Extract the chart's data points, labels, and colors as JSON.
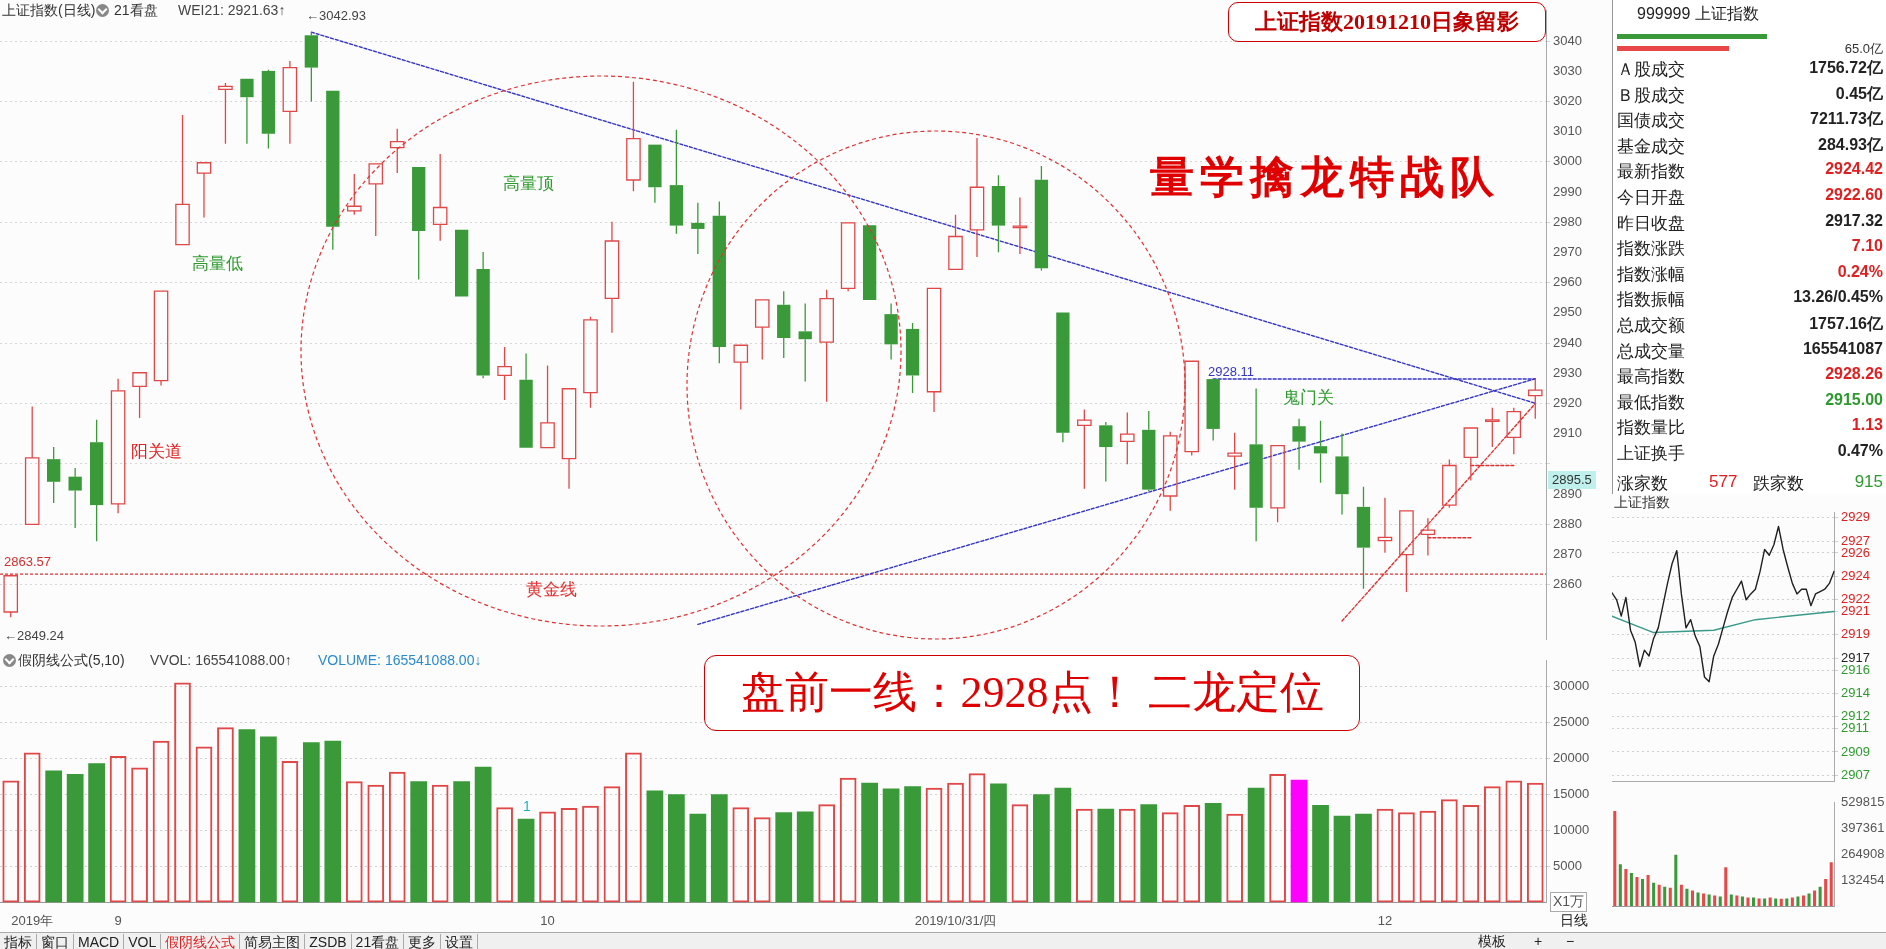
{
  "chart_data": [
    {
      "type": "candlestick",
      "title": "上证指数(日线)",
      "categories": [
        null,
        null,
        null,
        null,
        null,
        null,
        null,
        null,
        null,
        null,
        null,
        null,
        null,
        null,
        null,
        null,
        null,
        null,
        null,
        null,
        null,
        null,
        null,
        null,
        null,
        null,
        null,
        null,
        null,
        null,
        null,
        null,
        null,
        null,
        null,
        null,
        null,
        null,
        null,
        null,
        null,
        null,
        null,
        null,
        null,
        null,
        null,
        null,
        null,
        null,
        null,
        null,
        null,
        null,
        null,
        null,
        null,
        null,
        null,
        null,
        null,
        null,
        null,
        null,
        null,
        null,
        null,
        null,
        null,
        null,
        null,
        null
      ],
      "ohlc": [
        [
          2851,
          2863.57,
          2849.24,
          2863
        ],
        [
          2880,
          2919,
          2880,
          2902
        ],
        [
          2901.6,
          2905.6,
          2887.1,
          2894.1
        ],
        [
          2895.8,
          2898.7,
          2878.8,
          2891.2
        ],
        [
          2907.2,
          2914.6,
          2874.4,
          2886.4
        ],
        [
          2886.8,
          2928.2,
          2883.7,
          2924.2
        ],
        [
          2925.7,
          2930.2,
          2915.2,
          2930.2
        ],
        [
          2927.6,
          2957.2,
          2926,
          2957.2
        ],
        [
          2972.6,
          3015.5,
          2972.6,
          2985.9
        ],
        [
          2996.3,
          2999.7,
          2981.6,
          2999.7
        ],
        [
          3024,
          3026.1,
          3006,
          3025
        ],
        [
          3027.5,
          3027.5,
          3006,
          3021.4
        ],
        [
          3030.1,
          3030.5,
          3004.4,
          3009.3
        ],
        [
          3016.7,
          3033.4,
          3006,
          3031.2
        ],
        [
          3041.9,
          3042.93,
          3020,
          3031.2
        ],
        [
          3023.5,
          3023.5,
          2970.9,
          2978.5
        ],
        [
          2983.8,
          2996,
          2982.5,
          2985.3
        ],
        [
          2992.7,
          2999.3,
          2975.5,
          2999.3
        ],
        [
          3004.7,
          3011,
          2996.3,
          3006.7
        ],
        [
          2998.3,
          2998.3,
          2961.1,
          2977.1
        ],
        [
          2979.3,
          3002.6,
          2973.9,
          2984.9
        ],
        [
          2977.5,
          2977.5,
          2955.4,
          2955.4
        ],
        [
          2964.5,
          2970.2,
          2928.4,
          2929.3
        ],
        [
          2929.3,
          2938.7,
          2921.2,
          2932.2
        ],
        [
          2927.9,
          2936.6,
          2905.4,
          2905.4
        ],
        [
          2905.4,
          2932.6,
          2905.4,
          2913.6
        ],
        [
          2901.8,
          2924.9,
          2891.8,
          2924.9
        ],
        [
          2923.6,
          2948.7,
          2918.6,
          2947.7
        ],
        [
          2954.8,
          2980.2,
          2943.4,
          2973.8
        ],
        [
          2994,
          3026.5,
          2990.3,
          3007.7
        ],
        [
          3005.7,
          3005.7,
          2986.5,
          2991.6
        ],
        [
          2992.3,
          3010.6,
          2976.2,
          2978.9
        ],
        [
          2979.8,
          2986.5,
          2969.5,
          2977.8
        ],
        [
          2982.2,
          2986.9,
          2933.3,
          2938.7
        ],
        [
          2933.7,
          2939.3,
          2918,
          2939.3
        ],
        [
          2945.3,
          2954.3,
          2934.6,
          2954.3
        ],
        [
          2952.7,
          2957.2,
          2935.1,
          2941.7
        ],
        [
          2943.9,
          2953.1,
          2927.3,
          2941.3
        ],
        [
          2940.3,
          2957.7,
          2920.6,
          2954.7
        ],
        [
          2958.1,
          2979.8,
          2957.2,
          2979.8
        ],
        [
          2979,
          2979,
          2954.3,
          2954.3
        ],
        [
          2949.6,
          2953.1,
          2934.6,
          2939.6
        ],
        [
          2944.7,
          2946.7,
          2923.5,
          2929.3
        ],
        [
          2923.9,
          2958.1,
          2917.2,
          2958.1
        ],
        [
          2964.4,
          2982.5,
          2964.4,
          2975.3
        ],
        [
          2977.5,
          3007.9,
          2968.5,
          2991.6
        ],
        [
          2992,
          2995.6,
          2970.1,
          2978.9
        ],
        [
          2978.3,
          2988.2,
          2969.5,
          2978.7
        ],
        [
          2994.1,
          2998.6,
          2964,
          2964.8
        ],
        [
          2950.1,
          2950.1,
          2907.2,
          2910.3
        ],
        [
          2912.8,
          2918,
          2891.8,
          2914.5
        ],
        [
          2912.8,
          2913.9,
          2894.2,
          2905.6
        ],
        [
          2907.5,
          2917,
          2899.9,
          2909.9
        ],
        [
          2911.3,
          2917.5,
          2891,
          2891.5
        ],
        [
          2889.4,
          2910.7,
          2884.5,
          2909.3
        ],
        [
          2904.1,
          2934,
          2902.8,
          2934
        ],
        [
          2928.1,
          2928.11,
          2907.8,
          2911.6
        ],
        [
          2902.6,
          2910.3,
          2891.5,
          2903.6
        ],
        [
          2906.5,
          2925,
          2874.4,
          2885.5
        ],
        [
          2885.5,
          2906.1,
          2880.7,
          2906.1
        ],
        [
          2912.5,
          2915,
          2898.1,
          2907.4
        ],
        [
          2905.9,
          2914.3,
          2893.8,
          2903.5
        ],
        [
          2902.5,
          2910.1,
          2883.3,
          2890
        ],
        [
          2885.8,
          2892.5,
          2858.7,
          2872.3
        ],
        [
          2874.6,
          2888.8,
          2870.6,
          2875.7
        ],
        [
          2870,
          2884.5,
          2857.6,
          2884.5
        ],
        [
          2876.7,
          2882,
          2869.7,
          2878.1
        ],
        [
          2886.4,
          2901.5,
          2885.5,
          2899.5
        ],
        [
          2902.2,
          2911.9,
          2894.5,
          2911.9
        ],
        [
          2914.2,
          2918.6,
          2905.6,
          2914.6
        ],
        [
          2908.8,
          2918.6,
          2903.2,
          2917.32
        ],
        [
          2922.6,
          2928.26,
          2915,
          2924.42
        ]
      ],
      "colors": [
        "#e04848",
        "#e04848",
        "#3a9a3a",
        "#3a9a3a",
        "#3a9a3a",
        "#e04848",
        "#e04848",
        "#e04848",
        "#e04848",
        "#e04848",
        "#e04848",
        "#3a9a3a",
        "#3a9a3a",
        "#e04848",
        "#3a9a3a",
        "#3a9a3a",
        "#e04848",
        "#e04848",
        "#e04848",
        "#3a9a3a",
        "#e04848",
        "#3a9a3a",
        "#3a9a3a",
        "#e04848",
        "#3a9a3a",
        "#e04848",
        "#e04848",
        "#e04848",
        "#e04848",
        "#e04848",
        "#3a9a3a",
        "#3a9a3a",
        "#3a9a3a",
        "#3a9a3a",
        "#e04848",
        "#e04848",
        "#3a9a3a",
        "#3a9a3a",
        "#e04848",
        "#e04848",
        "#3a9a3a",
        "#3a9a3a",
        "#3a9a3a",
        "#e04848",
        "#e04848",
        "#e04848",
        "#3a9a3a",
        "#e04848",
        "#3a9a3a",
        "#3a9a3a",
        "#e04848",
        "#3a9a3a",
        "#e04848",
        "#3a9a3a",
        "#e04848",
        "#e04848",
        "#3a9a3a",
        "#e04848",
        "#3a9a3a",
        "#e04848",
        "#3a9a3a",
        "#3a9a3a",
        "#3a9a3a",
        "#3a9a3a",
        "#e04848",
        "#e04848",
        "#e04848",
        "#e04848",
        "#e04848",
        "#e04848",
        "#e04848",
        "#e04848"
      ],
      "series": [
        {
          "type": "line",
          "color": "#3535c8",
          "values": [
            null,
            null,
            null,
            null,
            null,
            null,
            null,
            null,
            null,
            null,
            null,
            null,
            null,
            null,
            3042.93,
            null,
            null,
            null,
            null,
            null,
            null,
            null,
            null,
            null,
            null,
            null,
            null,
            null,
            null,
            null,
            null,
            null,
            null,
            null,
            null,
            null,
            null,
            null,
            null,
            null,
            null,
            null,
            null,
            null,
            null,
            null,
            null,
            null,
            null,
            null,
            null,
            null,
            null,
            null,
            null,
            null,
            null,
            null,
            null,
            null,
            null,
            null,
            null,
            null,
            null,
            null,
            null,
            null,
            null,
            null,
            null,
            2920.1
          ]
        },
        {
          "type": "line",
          "color": "#3535c8",
          "values": [
            null,
            null,
            null,
            null,
            null,
            null,
            null,
            null,
            null,
            null,
            null,
            null,
            null,
            null,
            null,
            null,
            null,
            null,
            null,
            null,
            null,
            null,
            null,
            null,
            null,
            null,
            null,
            null,
            null,
            null,
            null,
            null,
            2846.9,
            null,
            null,
            null,
            null,
            null,
            null,
            null,
            null,
            null,
            null,
            null,
            null,
            null,
            null,
            null,
            null,
            null,
            null,
            null,
            null,
            null,
            null,
            null,
            null,
            null,
            null,
            null,
            null,
            null,
            null,
            null,
            null,
            null,
            null,
            null,
            null,
            null,
            null,
            2928.2
          ]
        },
        {
          "type": "line",
          "color": "#3535c8",
          "values": [
            null,
            null,
            null,
            null,
            null,
            null,
            null,
            null,
            null,
            null,
            null,
            null,
            null,
            null,
            null,
            null,
            null,
            null,
            null,
            null,
            null,
            null,
            null,
            null,
            null,
            null,
            null,
            null,
            null,
            null,
            null,
            null,
            null,
            null,
            null,
            null,
            null,
            null,
            null,
            null,
            null,
            null,
            null,
            null,
            null,
            null,
            null,
            null,
            null,
            null,
            null,
            null,
            null,
            null,
            null,
            null,
            2928.11,
            null,
            null,
            null,
            null,
            null,
            null,
            null,
            null,
            null,
            null,
            null,
            null,
            null,
            null,
            2928.11
          ]
        },
        {
          "type": "line",
          "color": "#e03030",
          "values": [
            null,
            null,
            null,
            null,
            null,
            null,
            null,
            null,
            null,
            null,
            null,
            null,
            null,
            null,
            null,
            null,
            null,
            null,
            null,
            null,
            null,
            null,
            null,
            null,
            null,
            null,
            null,
            null,
            null,
            null,
            null,
            null,
            null,
            null,
            null,
            null,
            null,
            null,
            null,
            null,
            null,
            null,
            null,
            null,
            null,
            null,
            null,
            null,
            null,
            null,
            null,
            null,
            null,
            null,
            null,
            null,
            null,
            null,
            null,
            null,
            null,
            null,
            2848,
            null,
            null,
            null,
            null,
            null,
            null,
            null,
            null,
            2920
          ]
        },
        {
          "type": "line",
          "color": "#e03030",
          "values": [
            null,
            null,
            null,
            null,
            null,
            null,
            null,
            null,
            null,
            null,
            null,
            null,
            null,
            null,
            null,
            null,
            null,
            null,
            null,
            null,
            null,
            null,
            null,
            null,
            null,
            null,
            null,
            null,
            null,
            null,
            null,
            null,
            null,
            null,
            null,
            null,
            null,
            null,
            null,
            null,
            null,
            null,
            null,
            null,
            null,
            null,
            null,
            null,
            null,
            null,
            null,
            null,
            null,
            null,
            null,
            null,
            null,
            null,
            null,
            null,
            null,
            null,
            null,
            null,
            null,
            null,
            2875.6,
            null,
            2875.6,
            null,
            null,
            null
          ]
        },
        {
          "type": "line",
          "color": "#e03030",
          "values": [
            null,
            null,
            null,
            null,
            null,
            null,
            null,
            null,
            null,
            null,
            null,
            null,
            null,
            null,
            null,
            null,
            null,
            null,
            null,
            null,
            null,
            null,
            null,
            null,
            null,
            null,
            null,
            null,
            null,
            null,
            null,
            null,
            null,
            null,
            null,
            null,
            null,
            null,
            null,
            null,
            null,
            null,
            null,
            null,
            null,
            null,
            null,
            null,
            null,
            null,
            null,
            null,
            null,
            null,
            null,
            null,
            null,
            null,
            null,
            null,
            null,
            null,
            null,
            null,
            null,
            null,
            null,
            null,
            2899.5,
            null,
            2899.5,
            null
          ]
        }
      ],
      "line_style": "dashed",
      "ylim": [
        2842,
        3050
      ],
      "yticks": [
        2860,
        2870,
        2880,
        2890,
        {
          "value": 2900,
          "label": null
        },
        2910,
        2920,
        2930,
        2940,
        2950,
        2960,
        2970,
        2980,
        2990,
        3000,
        3010,
        3020,
        3030,
        3040
      ],
      "grid": "y",
      "tick_labels": "y",
      "ref_lines": [
        {
          "axis": "y",
          "value": 2863.57,
          "label": "黄金线",
          "color": "#e03030",
          "line_style": "dashed"
        }
      ],
      "annotations": [
        "21看盘",
        "WEI21: 2921.63↑",
        "上证指数20191210日象留影",
        "量学擒龙特战队",
        "高量低",
        "高量顶",
        "阳关道",
        "鬼门关",
        "←3042.93",
        "←2849.24",
        "2863.57",
        "2928.11",
        "2895.5"
      ]
    },
    {
      "type": "bar",
      "title": "假阴线公式(5,10)",
      "categories": [
        null,
        "2019年",
        null,
        null,
        null,
        "9",
        null,
        null,
        null,
        null,
        null,
        null,
        null,
        null,
        null,
        null,
        null,
        null,
        null,
        null,
        null,
        null,
        null,
        null,
        null,
        "10",
        null,
        null,
        null,
        null,
        null,
        null,
        null,
        null,
        null,
        null,
        null,
        null,
        null,
        null,
        null,
        null,
        null,
        null,
        "2019/10/31/四",
        null,
        null,
        null,
        null,
        null,
        null,
        null,
        null,
        null,
        null,
        null,
        null,
        null,
        null,
        null,
        null,
        null,
        null,
        null,
        "12",
        null,
        null,
        null,
        null,
        null,
        null,
        null
      ],
      "values": [
        16900,
        20800,
        18300,
        17800,
        19300,
        20300,
        18700,
        22400,
        30500,
        21600,
        24300,
        24000,
        23000,
        19600,
        22200,
        22400,
        16800,
        16300,
        18100,
        16800,
        16300,
        16800,
        18800,
        13200,
        11600,
        12600,
        13100,
        13400,
        16100,
        20800,
        15500,
        15000,
        12300,
        15000,
        13200,
        11800,
        12500,
        12600,
        13600,
        17300,
        16600,
        15800,
        16100,
        15900,
        16600,
        17900,
        16500,
        13600,
        15000,
        15900,
        13000,
        13000,
        13000,
        13600,
        12500,
        13500,
        13800,
        12300,
        15900,
        17800,
        17000,
        13500,
        12000,
        12300,
        13000,
        12500,
        12700,
        14300,
        13500,
        16100,
        16900,
        16600
      ],
      "colors": [
        "#e04848",
        "#e04848",
        "#3a9a3a",
        "#3a9a3a",
        "#3a9a3a",
        "#e04848",
        "#e04848",
        "#e04848",
        "#e04848",
        "#e04848",
        "#e04848",
        "#3a9a3a",
        "#3a9a3a",
        "#e04848",
        "#3a9a3a",
        "#3a9a3a",
        "#e04848",
        "#e04848",
        "#e04848",
        "#3a9a3a",
        "#e04848",
        "#3a9a3a",
        "#3a9a3a",
        "#e04848",
        "#3a9a3a",
        "#e04848",
        "#e04848",
        "#e04848",
        "#e04848",
        "#e04848",
        "#3a9a3a",
        "#3a9a3a",
        "#3a9a3a",
        "#3a9a3a",
        "#e04848",
        "#e04848",
        "#3a9a3a",
        "#3a9a3a",
        "#e04848",
        "#e04848",
        "#3a9a3a",
        "#3a9a3a",
        "#3a9a3a",
        "#e04848",
        "#e04848",
        "#e04848",
        "#3a9a3a",
        "#e04848",
        "#3a9a3a",
        "#3a9a3a",
        "#e04848",
        "#3a9a3a",
        "#e04848",
        "#3a9a3a",
        "#e04848",
        "#e04848",
        "#3a9a3a",
        "#e04848",
        "#3a9a3a",
        "#e04848",
        "#ff00ff",
        "#3a9a3a",
        "#3a9a3a",
        "#3a9a3a",
        "#e04848",
        "#e04848",
        "#e04848",
        "#e04848",
        "#e04848",
        "#e04848",
        "#e04848",
        "#e04848"
      ],
      "ylim": [
        0,
        33500
      ],
      "yticks": [
        5000,
        10000,
        15000,
        20000,
        25000,
        30000
      ],
      "grid": "y",
      "annotations": [
        "VVOL: 165541088.00↑",
        "VOLUME: 165541088.00↓",
        "盘前一线：2928点！ 二龙定位",
        "1",
        "X1万"
      ]
    },
    {
      "type": "other",
      "title": "999999 上证指数",
      "annotations": [
        "65.0亿",
        "Ａ股成交",
        "1756.72亿",
        "Ｂ股成交",
        "0.45亿",
        "国债成交",
        "7211.73亿",
        "基金成交",
        "284.93亿",
        "最新指数",
        "2924.42",
        "今日开盘",
        "2922.60",
        "昨日收盘",
        "2917.32",
        "指数涨跌",
        "7.10",
        "指数涨幅",
        "0.24%",
        "指数振幅",
        "13.26/0.45%",
        "总成交额",
        "1757.16亿",
        "总成交量",
        "165541087",
        "最高指数",
        "2928.26",
        "最低指数",
        "2915.00",
        "指数量比",
        "1.13",
        "上证换手",
        "0.47%",
        "涨家数",
        "577",
        "跌家数",
        "915"
      ]
    },
    {
      "type": "line",
      "title": "上证指数",
      "categories": [
        null,
        null,
        null,
        null,
        null,
        null,
        null,
        null,
        null,
        null,
        null,
        null,
        null,
        null,
        null,
        null,
        null,
        null,
        null,
        null,
        null,
        null,
        null,
        null,
        null,
        null,
        null,
        null,
        null,
        null,
        null,
        null,
        null,
        null,
        null,
        null,
        null,
        null,
        null,
        null,
        null,
        null,
        null,
        null,
        null,
        null,
        null,
        null,
        null
      ],
      "series": [
        {
          "color": "#202020",
          "values": [
            2922.6,
            2922.0,
            2920.6,
            2922.2,
            2919.4,
            2918.4,
            2916.3,
            2917.7,
            2917.2,
            2918.7,
            2919.6,
            2921.5,
            2923.4,
            2925.1,
            2926.2,
            2922.5,
            2919.6,
            2920.3,
            2918.9,
            2918.0,
            2915.4,
            2915.0,
            2917.2,
            2918.2,
            2919.6,
            2921.0,
            2922.2,
            2922.9,
            2923.6,
            2922.0,
            2922.5,
            2922.9,
            2924.4,
            2926.3,
            2925.8,
            2926.7,
            2928.26,
            2926.3,
            2924.8,
            2923.4,
            2922.5,
            2922.9,
            2922.9,
            2921.5,
            2922.5,
            2922.7,
            2922.9,
            2923.4,
            2924.42
          ]
        },
        {
          "color": "#3a9a8a",
          "values": [
            2920.6,
            null,
            null,
            null,
            null,
            null,
            null,
            null,
            null,
            2919.2,
            null,
            null,
            null,
            null,
            null,
            null,
            null,
            null,
            null,
            null,
            null,
            null,
            2919.4,
            null,
            null,
            null,
            null,
            null,
            null,
            null,
            null,
            2920.3,
            null,
            null,
            null,
            null,
            null,
            null,
            null,
            null,
            null,
            null,
            null,
            null,
            null,
            null,
            null,
            null,
            2921.0
          ]
        }
      ],
      "ylim": [
        2906.5,
        2929.5
      ],
      "yticks": [
        2907,
        2909,
        2911,
        2912,
        2914,
        2916,
        2917,
        2919,
        2921,
        2922,
        2924,
        2926,
        2927,
        2929
      ],
      "grid": "y",
      "tick_labels": "y"
    },
    {
      "type": "bar",
      "categories": [
        null,
        null,
        null,
        null,
        null,
        null,
        null,
        null,
        null,
        null,
        null,
        null,
        null,
        null,
        null,
        null,
        null,
        null,
        null,
        null,
        null,
        null,
        null,
        null,
        null,
        null,
        null,
        null,
        null,
        null,
        null,
        null,
        null,
        null,
        null,
        null,
        null,
        null,
        null,
        null
      ],
      "values": [
        488000,
        215000,
        190000,
        170000,
        150000,
        140000,
        160000,
        120000,
        110000,
        100000,
        95000,
        263000,
        110000,
        90000,
        80000,
        70000,
        65000,
        60000,
        55000,
        50000,
        200000,
        60000,
        55000,
        50000,
        45000,
        45000,
        40000,
        40000,
        45000,
        40000,
        38000,
        40000,
        45000,
        50000,
        55000,
        65000,
        80000,
        100000,
        140000,
        225000
      ],
      "colors": [
        "#e84848",
        "#3a9a3a",
        "#e84848",
        "#3a9a3a",
        "#e84848",
        "#3a9a3a",
        "#e84848",
        "#3a9a3a",
        "#e84848",
        "#3a9a3a",
        "#e84848",
        "#3a9a3a",
        "#e84848",
        "#3a9a3a",
        "#e84848",
        "#3a9a3a",
        "#e84848",
        "#3a9a3a",
        "#e84848",
        "#3a9a3a",
        "#e84848",
        "#3a9a3a",
        "#e84848",
        "#3a9a3a",
        "#e84848",
        "#3a9a3a",
        "#e84848",
        "#3a9a3a",
        "#e84848",
        "#3a9a3a",
        "#e84848",
        "#3a9a3a",
        "#e84848",
        "#3a9a3a",
        "#e84848",
        "#3a9a3a",
        "#e84848",
        "#3a9a3a",
        "#e84848",
        "#e84848"
      ],
      "ylim": [
        0,
        529815
      ],
      "yticks": [
        132454,
        264908,
        397361,
        529815
      ],
      "tick_labels": "y"
    },
    {
      "type": "other",
      "annotations": [
        "指标",
        "窗口",
        "MACD",
        "VOL",
        "假阴线公式",
        "简易主图",
        "ZSDB",
        "21看盘",
        "更多",
        "设置",
        "模板",
        "+",
        "−",
        "日线"
      ]
    }
  ]
}
